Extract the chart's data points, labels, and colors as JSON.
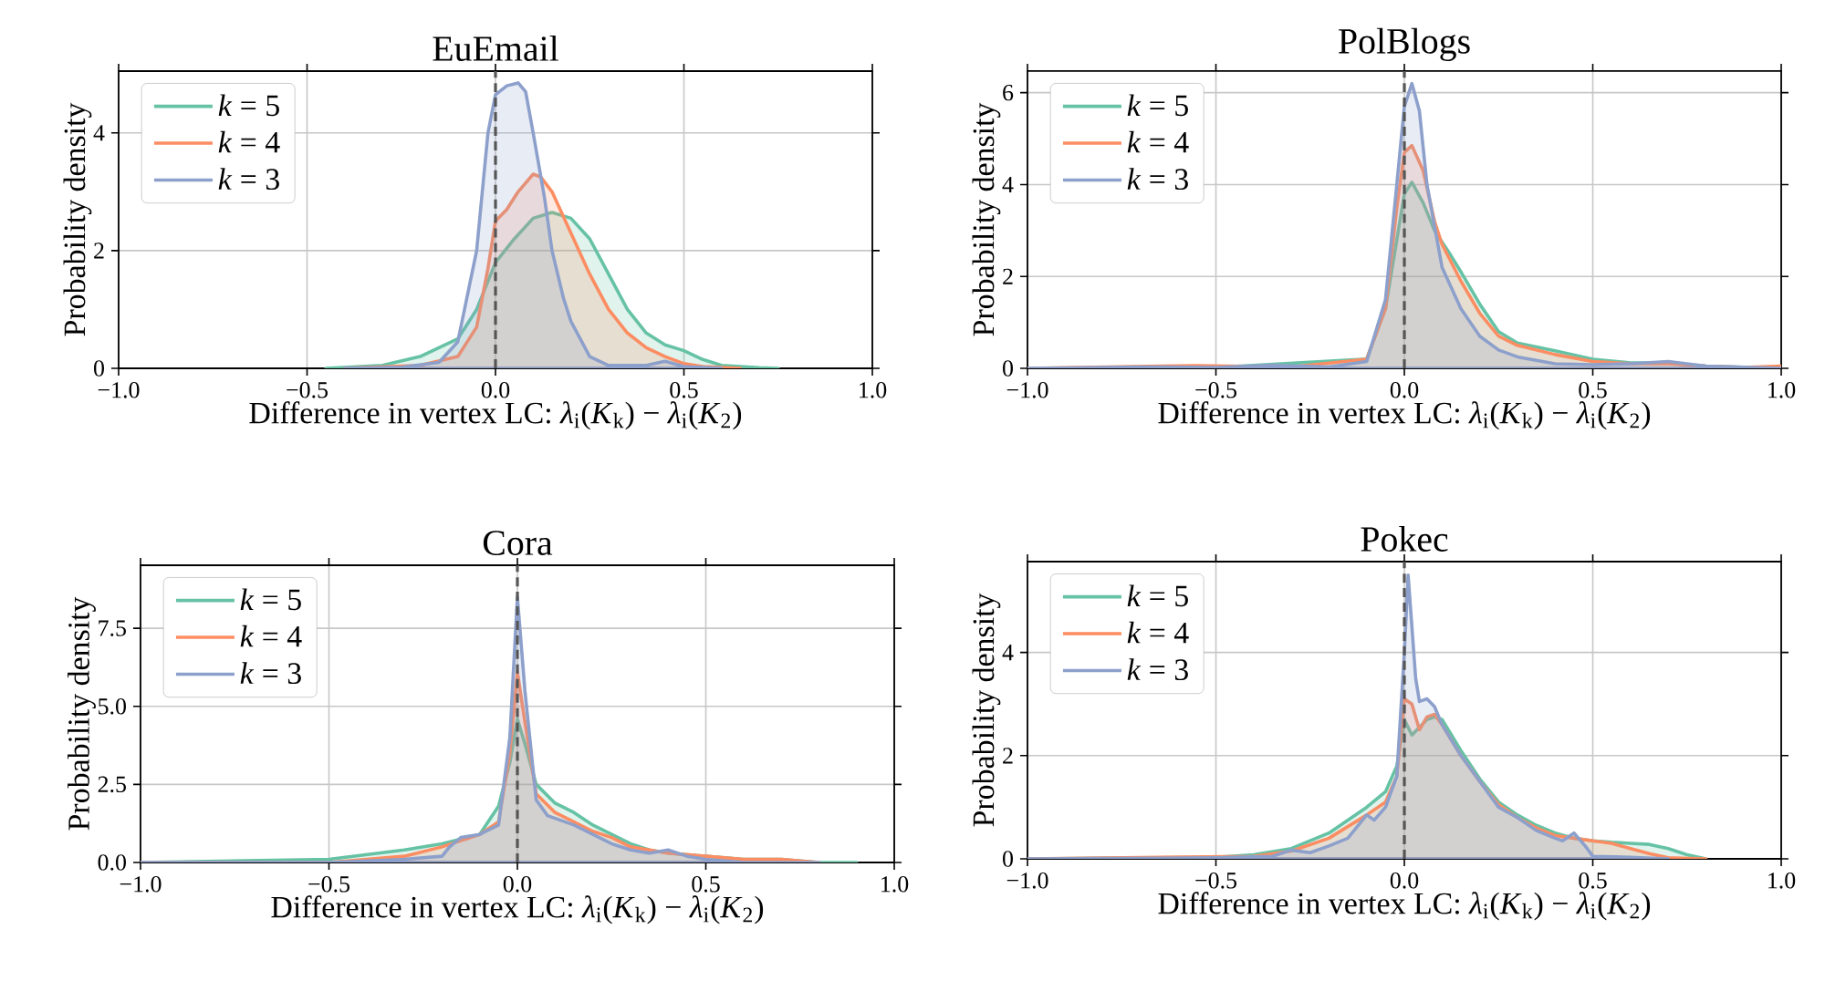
{
  "chart_data": [
    {
      "type": "area",
      "title": "EuEmail",
      "xlabel": "Difference in vertex LC: *λ*$_{i}$(*K*$_{k}$) − *λ*$_{i}$(*K*$_{2}$)",
      "ylabel": "Probability density",
      "xlim": [
        -1,
        1
      ],
      "xticks": [
        {
          "value": -1,
          "label": "−1.0"
        },
        {
          "value": -0.5,
          "label": "−0.5"
        },
        {
          "value": 0,
          "label": "0.0"
        },
        {
          "value": 0.5,
          "label": "0.5"
        },
        {
          "value": 1,
          "label": "1.0"
        }
      ],
      "ylim": [
        0,
        5.05
      ],
      "yticks": [
        0,
        2,
        4
      ],
      "grid": true,
      "legend": "top left",
      "ref_lines": [
        {
          "axis": "x",
          "value": 0,
          "color": "#555555",
          "line_style": "dashed"
        }
      ],
      "series": [
        {
          "name": "*k* = 5",
          "color": "#66c2a5",
          "x": [
            -0.45,
            -0.3,
            -0.2,
            -0.1,
            -0.05,
            0,
            0.05,
            0.1,
            0.15,
            0.2,
            0.25,
            0.3,
            0.35,
            0.4,
            0.45,
            0.5,
            0.55,
            0.6,
            0.7,
            0.75
          ],
          "values": [
            0,
            0.05,
            0.2,
            0.5,
            1.0,
            1.8,
            2.2,
            2.55,
            2.65,
            2.55,
            2.2,
            1.6,
            1.0,
            0.6,
            0.4,
            0.3,
            0.15,
            0.05,
            0.01,
            0
          ]
        },
        {
          "name": "*k* = 4",
          "color": "#fc8d62",
          "x": [
            -0.4,
            -0.2,
            -0.1,
            -0.05,
            -0.02,
            0,
            0.03,
            0.06,
            0.1,
            0.12,
            0.15,
            0.2,
            0.25,
            0.3,
            0.35,
            0.4,
            0.45,
            0.5,
            0.55,
            0.65
          ],
          "values": [
            0,
            0.05,
            0.2,
            0.7,
            1.7,
            2.5,
            2.7,
            3.0,
            3.3,
            3.25,
            3.0,
            2.3,
            1.6,
            1.0,
            0.6,
            0.35,
            0.2,
            0.08,
            0.03,
            0
          ]
        },
        {
          "name": "*k* = 3",
          "color": "#8da0cb",
          "x": [
            -0.4,
            -0.25,
            -0.15,
            -0.1,
            -0.05,
            -0.02,
            0,
            0.03,
            0.06,
            0.08,
            0.1,
            0.13,
            0.15,
            0.18,
            0.2,
            0.25,
            0.3,
            0.4,
            0.45,
            0.5,
            0.6
          ],
          "values": [
            0,
            0.02,
            0.1,
            0.45,
            2.0,
            4.0,
            4.65,
            4.8,
            4.85,
            4.7,
            4.0,
            2.9,
            2.0,
            1.2,
            0.8,
            0.2,
            0.05,
            0.05,
            0.12,
            0.03,
            0
          ]
        }
      ]
    },
    {
      "type": "area",
      "title": "PolBlogs",
      "xlabel": "Difference in vertex LC: *λ*$_{i}$(*K*$_{k}$) − *λ*$_{i}$(*K*$_{2}$)",
      "ylabel": "Probability density",
      "xlim": [
        -1,
        1
      ],
      "xticks": [
        {
          "value": -1,
          "label": "−1.0"
        },
        {
          "value": -0.5,
          "label": "−0.5"
        },
        {
          "value": 0,
          "label": "0.0"
        },
        {
          "value": 0.5,
          "label": "0.5"
        },
        {
          "value": 1,
          "label": "1.0"
        }
      ],
      "ylim": [
        0,
        6.47
      ],
      "yticks": [
        0,
        2,
        4,
        6
      ],
      "grid": true,
      "legend": "top left",
      "ref_lines": [
        {
          "axis": "x",
          "value": 0,
          "color": "#555555",
          "line_style": "dashed"
        }
      ],
      "series": [
        {
          "name": "*k* = 5",
          "color": "#66c2a5",
          "x": [
            -1,
            -0.5,
            -0.1,
            -0.05,
            -0.02,
            0,
            0.02,
            0.05,
            0.08,
            0.12,
            0.15,
            0.2,
            0.25,
            0.3,
            0.4,
            0.5,
            0.6,
            0.7,
            0.8,
            1.0
          ],
          "values": [
            0,
            0.02,
            0.2,
            1.3,
            2.8,
            3.8,
            4.05,
            3.6,
            3.0,
            2.5,
            2.1,
            1.4,
            0.8,
            0.55,
            0.38,
            0.2,
            0.12,
            0.12,
            0.05,
            0
          ]
        },
        {
          "name": "*k* = 4",
          "color": "#fc8d62",
          "x": [
            -1,
            -0.55,
            -0.3,
            -0.1,
            -0.05,
            -0.02,
            0,
            0.02,
            0.05,
            0.08,
            0.1,
            0.15,
            0.2,
            0.25,
            0.3,
            0.4,
            0.5,
            0.6,
            0.7,
            0.8,
            0.9,
            1.0
          ],
          "values": [
            0,
            0.06,
            0.03,
            0.2,
            1.3,
            3.5,
            4.7,
            4.85,
            4.3,
            3.2,
            2.7,
            1.9,
            1.2,
            0.7,
            0.5,
            0.3,
            0.15,
            0.1,
            0.1,
            0.05,
            0.02,
            0.05
          ]
        },
        {
          "name": "*k* = 3",
          "color": "#8da0cb",
          "x": [
            -1,
            -0.7,
            -0.5,
            -0.35,
            -0.2,
            -0.1,
            -0.05,
            -0.02,
            0,
            0.02,
            0.04,
            0.06,
            0.1,
            0.15,
            0.2,
            0.25,
            0.3,
            0.4,
            0.5,
            0.6,
            0.7,
            0.8,
            1.0
          ],
          "values": [
            0,
            0.03,
            0.02,
            0.07,
            0.03,
            0.15,
            1.5,
            4.0,
            5.7,
            6.2,
            5.6,
            4.0,
            2.2,
            1.3,
            0.7,
            0.4,
            0.25,
            0.1,
            0.08,
            0.1,
            0.15,
            0.05,
            0
          ]
        }
      ]
    },
    {
      "type": "area",
      "title": "Cora",
      "xlabel": "Difference in vertex LC: *λ*$_{i}$(*K*$_{k}$) − *λ*$_{i}$(*K*$_{2}$)",
      "ylabel": "Probability density",
      "xlim": [
        -1,
        1
      ],
      "xticks": [
        {
          "value": -1,
          "label": "−1.0"
        },
        {
          "value": -0.5,
          "label": "−0.5"
        },
        {
          "value": 0,
          "label": "0.0"
        },
        {
          "value": 0.5,
          "label": "0.5"
        },
        {
          "value": 1,
          "label": "1.0"
        }
      ],
      "ylim": [
        0,
        9.52
      ],
      "yticks": [
        {
          "value": 0,
          "label": "0.0"
        },
        2.5,
        {
          "value": 5,
          "label": "5.0"
        },
        7.5
      ],
      "grid": true,
      "legend": "top left",
      "ref_lines": [
        {
          "axis": "x",
          "value": 0,
          "color": "#555555",
          "line_style": "dashed"
        }
      ],
      "series": [
        {
          "name": "*k* = 5",
          "color": "#66c2a5",
          "x": [
            -1,
            -0.5,
            -0.3,
            -0.2,
            -0.1,
            -0.05,
            -0.02,
            0,
            0.02,
            0.05,
            0.1,
            0.15,
            0.2,
            0.25,
            0.3,
            0.35,
            0.4,
            0.5,
            0.6,
            0.7,
            0.8,
            0.9
          ],
          "values": [
            0,
            0.1,
            0.4,
            0.6,
            0.9,
            1.8,
            3.2,
            4.6,
            3.8,
            2.5,
            1.9,
            1.6,
            1.2,
            0.9,
            0.6,
            0.4,
            0.3,
            0.2,
            0.1,
            0.1,
            0,
            0
          ]
        },
        {
          "name": "*k* = 4",
          "color": "#fc8d62",
          "x": [
            -1,
            -0.5,
            -0.3,
            -0.2,
            -0.1,
            -0.05,
            -0.02,
            0,
            0.02,
            0.05,
            0.1,
            0.15,
            0.2,
            0.25,
            0.3,
            0.35,
            0.4,
            0.5,
            0.6,
            0.7,
            0.8
          ],
          "values": [
            0,
            0,
            0.2,
            0.5,
            0.9,
            1.3,
            3.5,
            6.1,
            4.5,
            2.2,
            1.6,
            1.3,
            1.0,
            0.8,
            0.5,
            0.4,
            0.3,
            0.2,
            0.1,
            0.1,
            0
          ]
        },
        {
          "name": "*k* = 3",
          "color": "#8da0cb",
          "x": [
            -1,
            -0.5,
            -0.3,
            -0.2,
            -0.18,
            -0.15,
            -0.1,
            -0.05,
            -0.02,
            0,
            0.02,
            0.05,
            0.08,
            0.15,
            0.2,
            0.25,
            0.3,
            0.35,
            0.4,
            0.45,
            0.5,
            0.6,
            0.8
          ],
          "values": [
            0,
            0,
            0.1,
            0.2,
            0.5,
            0.8,
            0.9,
            1.2,
            4.0,
            8.5,
            5.5,
            2.0,
            1.5,
            1.2,
            0.9,
            0.6,
            0.4,
            0.3,
            0.4,
            0.2,
            0.1,
            0,
            0
          ]
        }
      ]
    },
    {
      "type": "area",
      "title": "Pokec",
      "xlabel": "Difference in vertex LC: *λ*$_{i}$(*K*$_{k}$) − *λ*$_{i}$(*K*$_{2}$)",
      "ylabel": "Probability density",
      "xlim": [
        -1,
        1
      ],
      "xticks": [
        {
          "value": -1,
          "label": "−1.0"
        },
        {
          "value": -0.5,
          "label": "−0.5"
        },
        {
          "value": 0,
          "label": "0.0"
        },
        {
          "value": 0.5,
          "label": "0.5"
        },
        {
          "value": 1,
          "label": "1.0"
        }
      ],
      "ylim": [
        0,
        5.76
      ],
      "yticks": [
        0,
        2,
        4
      ],
      "grid": true,
      "legend": "top left",
      "ref_lines": [
        {
          "axis": "x",
          "value": 0,
          "color": "#555555",
          "line_style": "dashed"
        }
      ],
      "series": [
        {
          "name": "*k* = 5",
          "color": "#66c2a5",
          "x": [
            -1,
            -0.5,
            -0.4,
            -0.3,
            -0.2,
            -0.1,
            -0.05,
            -0.02,
            0,
            0.02,
            0.04,
            0.06,
            0.08,
            0.1,
            0.15,
            0.2,
            0.25,
            0.3,
            0.35,
            0.4,
            0.45,
            0.5,
            0.55,
            0.6,
            0.65,
            0.7,
            0.75,
            0.8
          ],
          "values": [
            0,
            0.03,
            0.08,
            0.2,
            0.5,
            1.0,
            1.3,
            1.8,
            2.7,
            2.4,
            2.55,
            2.7,
            2.75,
            2.7,
            2.1,
            1.55,
            1.1,
            0.85,
            0.65,
            0.5,
            0.4,
            0.35,
            0.32,
            0.3,
            0.28,
            0.2,
            0.08,
            0
          ]
        },
        {
          "name": "*k* = 4",
          "color": "#fc8d62",
          "x": [
            -1,
            -0.4,
            -0.3,
            -0.2,
            -0.1,
            -0.05,
            -0.02,
            0,
            0.02,
            0.04,
            0.06,
            0.08,
            0.1,
            0.15,
            0.2,
            0.25,
            0.3,
            0.35,
            0.4,
            0.45,
            0.5,
            0.55,
            0.6,
            0.65,
            0.7,
            0.8
          ],
          "values": [
            0,
            0.05,
            0.15,
            0.4,
            0.85,
            1.1,
            1.6,
            3.1,
            3.0,
            2.5,
            2.75,
            2.8,
            2.6,
            2.0,
            1.5,
            1.05,
            0.8,
            0.6,
            0.45,
            0.4,
            0.35,
            0.3,
            0.2,
            0.1,
            0.02,
            0
          ]
        },
        {
          "name": "*k* = 3",
          "color": "#8da0cb",
          "x": [
            -1,
            -0.5,
            -0.35,
            -0.3,
            -0.25,
            -0.2,
            -0.15,
            -0.1,
            -0.08,
            -0.05,
            -0.02,
            0,
            0.01,
            0.03,
            0.04,
            0.06,
            0.08,
            0.1,
            0.15,
            0.2,
            0.25,
            0.3,
            0.35,
            0.4,
            0.42,
            0.45,
            0.48,
            0.5,
            0.6,
            0.7
          ],
          "values": [
            0,
            0.02,
            0.05,
            0.17,
            0.12,
            0.25,
            0.4,
            0.85,
            0.75,
            1.0,
            1.6,
            4.0,
            5.5,
            3.5,
            3.05,
            3.1,
            2.95,
            2.6,
            2.0,
            1.5,
            1.0,
            0.8,
            0.55,
            0.4,
            0.35,
            0.5,
            0.25,
            0.05,
            0.03,
            0
          ]
        }
      ]
    }
  ]
}
